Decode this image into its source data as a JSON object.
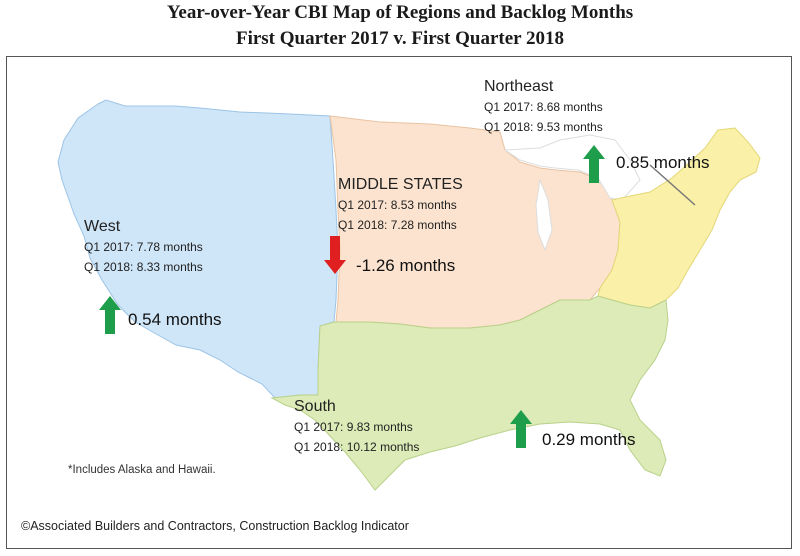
{
  "title_line1": "Year-over-Year CBI Map of Regions and Backlog Months",
  "title_line2": "First Quarter 2017 v. First Quarter 2018",
  "colors": {
    "west": "#cfe5f8",
    "middle": "#fbe3cf",
    "northeast": "#faf0a8",
    "south": "#dcebb7",
    "arrow_up": "#1e9e4a",
    "arrow_down": "#e02020"
  },
  "regions": {
    "west": {
      "name": "West",
      "q1_2017": "Q1 2017:  7.78 months",
      "q1_2018": "Q1 2018:  8.33 months",
      "change": "0.54 months",
      "direction_icon": "up-arrow-icon"
    },
    "middle": {
      "name": "MIDDLE STATES",
      "q1_2017": "Q1 2017:  8.53 months",
      "q1_2018": "Q1 2018:  7.28 months",
      "change": "-1.26 months",
      "direction_icon": "down-arrow-icon"
    },
    "northeast": {
      "name": "Northeast",
      "q1_2017": "Q1 2017:  8.68 months",
      "q1_2018": "Q1 2018:  9.53 months",
      "change": "0.85 months",
      "direction_icon": "up-arrow-icon"
    },
    "south": {
      "name": "South",
      "q1_2017": "Q1 2017:  9.83 months",
      "q1_2018": "Q1 2018:  10.12 months",
      "change": "0.29 months",
      "direction_icon": "up-arrow-icon"
    }
  },
  "footnote": "*Includes Alaska and Hawaii.",
  "copyright": "©Associated Builders and Contractors, Construction Backlog Indicator"
}
